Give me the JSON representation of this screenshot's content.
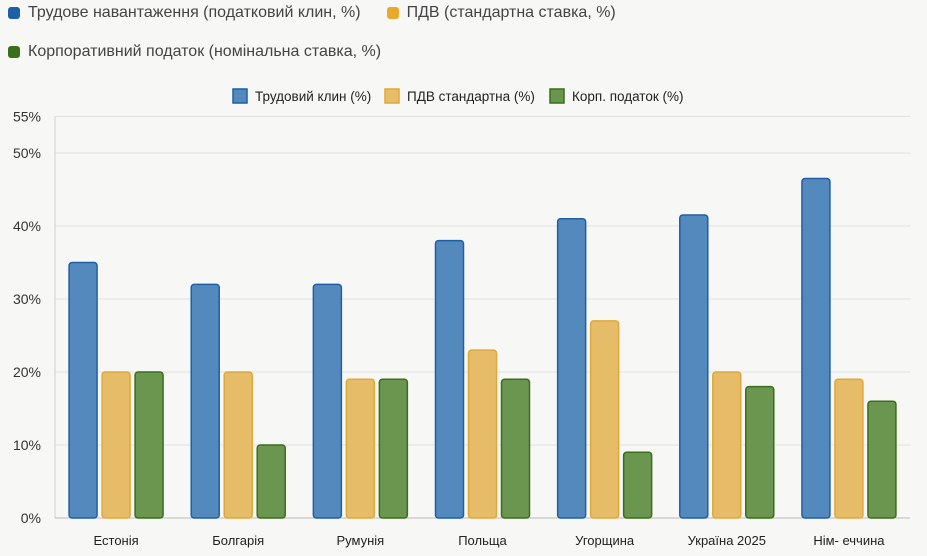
{
  "page_legend": [
    {
      "label": "Трудове навантаження (податковий клин, %)",
      "color": "#1f5fa8"
    },
    {
      "label": "ПДВ (стандартна ставка, %)",
      "color": "#e8a92c"
    },
    {
      "label": "Корпоративний податок (номінальна ставка, %)",
      "color": "#3b6e1a"
    }
  ],
  "chart_data": {
    "type": "bar",
    "title": "",
    "xlabel": "",
    "ylabel": "",
    "categories": [
      "Естонія",
      "Болгарія",
      "Румунія",
      "Польща",
      "Угорщина",
      "Україна 2025",
      "Нім- еччина"
    ],
    "series": [
      {
        "name": "Трудовий клин (%)",
        "values": [
          35,
          32,
          32,
          38,
          41,
          41.5,
          46.5
        ],
        "fill": "#5389bd",
        "stroke": "#1f5fa8"
      },
      {
        "name": "ПДВ стандартна (%)",
        "values": [
          20,
          20,
          19,
          23,
          27,
          20,
          19
        ],
        "fill": "#e6bc68",
        "stroke": "#e0a83a"
      },
      {
        "name": "Корп. податок (%)",
        "values": [
          20,
          10,
          19,
          19,
          9,
          18,
          16
        ],
        "fill": "#6a9650",
        "stroke": "#3b6e1a"
      }
    ],
    "yticks": [
      0,
      10,
      20,
      30,
      40,
      50,
      55
    ],
    "ytick_labels": [
      "0%",
      "10%",
      "20%",
      "30%",
      "40%",
      "50%",
      "55%"
    ],
    "ylim": [
      0,
      55
    ],
    "grid": true,
    "legend_position": "top-center"
  }
}
